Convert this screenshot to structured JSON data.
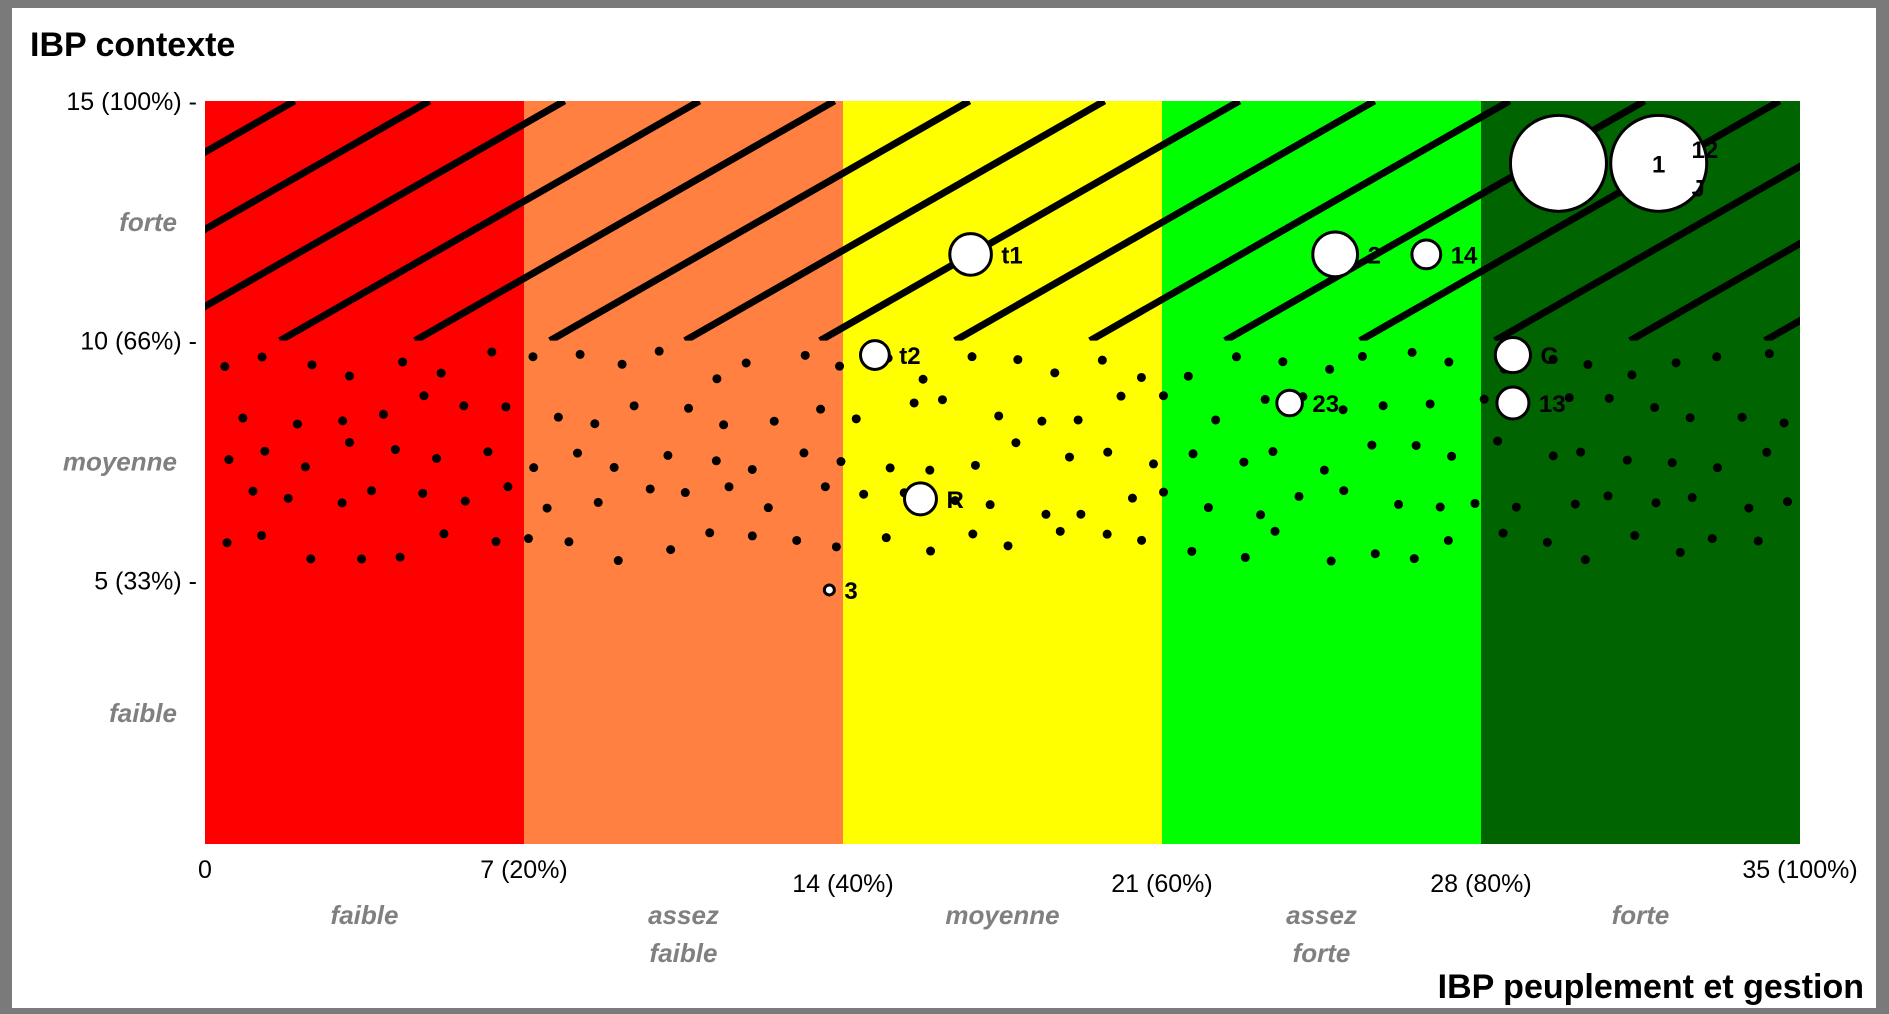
{
  "chart_data": {
    "type": "scatter",
    "title": "IBP contexte",
    "xlabel": "IBP peuplement et gestion",
    "ylabel": "",
    "xlim": [
      0,
      35
    ],
    "ylim": [
      -0.5,
      15
    ],
    "x_ticks": [
      {
        "value": 0,
        "label": "0"
      },
      {
        "value": 7,
        "label": "7 (20%)"
      },
      {
        "value": 14,
        "label": "14 (40%)"
      },
      {
        "value": 21,
        "label": "21 (60%)"
      },
      {
        "value": 28,
        "label": "28 (80%)"
      },
      {
        "value": 35,
        "label": "35 (100%)"
      }
    ],
    "y_ticks": [
      {
        "value": 15,
        "label": "15 (100%)  -"
      },
      {
        "value": 10,
        "label": "10 (66%)  -"
      },
      {
        "value": 5,
        "label": "5 (33%)   -"
      }
    ],
    "x_zones": [
      {
        "from": 0,
        "to": 7,
        "label": [
          "faible"
        ],
        "color": "#ff0000"
      },
      {
        "from": 7,
        "to": 14,
        "label": [
          "assez",
          "faible"
        ],
        "color": "#ff8040"
      },
      {
        "from": 14,
        "to": 21,
        "label": [
          "moyenne"
        ],
        "color": "#ffff00"
      },
      {
        "from": 21,
        "to": 28,
        "label": [
          "assez",
          "forte"
        ],
        "color": "#00ff00"
      },
      {
        "from": 28,
        "to": 35,
        "label": [
          "forte"
        ],
        "color": "#006400"
      }
    ],
    "y_zones": [
      {
        "from": 10,
        "to": 15,
        "label": "forte",
        "pattern": "hatch"
      },
      {
        "from": 5,
        "to": 10,
        "label": "moyenne",
        "pattern": "dots"
      },
      {
        "from": -0.5,
        "to": 5,
        "label": "faible",
        "pattern": "none"
      }
    ],
    "points": [
      {
        "label": "",
        "x": 29.7,
        "y": 13.7,
        "size": 3.0
      },
      {
        "label": "1",
        "x": 31.9,
        "y": 13.7,
        "size": 3.0
      },
      {
        "label": "12",
        "x": 32.4,
        "y": 14.0,
        "size": 0.0
      },
      {
        "label": "J",
        "x": 32.4,
        "y": 13.2,
        "size": 0.0
      },
      {
        "label": "t1",
        "x": 16.8,
        "y": 11.8,
        "size": 1.3
      },
      {
        "label": "2",
        "x": 24.8,
        "y": 11.8,
        "size": 1.4
      },
      {
        "label": "14",
        "x": 26.8,
        "y": 11.8,
        "size": 0.9
      },
      {
        "label": "t2",
        "x": 14.7,
        "y": 9.7,
        "size": 0.9
      },
      {
        "label": "C",
        "x": 28.7,
        "y": 9.7,
        "size": 1.1
      },
      {
        "label": "23",
        "x": 23.8,
        "y": 8.7,
        "size": 0.8
      },
      {
        "label": "13",
        "x": 28.7,
        "y": 8.7,
        "size": 1.0
      },
      {
        "label": "R",
        "x": 15.7,
        "y": 6.7,
        "size": 1.0
      },
      {
        "label": "3",
        "x": 13.7,
        "y": 4.8,
        "size": 0.2
      }
    ]
  }
}
